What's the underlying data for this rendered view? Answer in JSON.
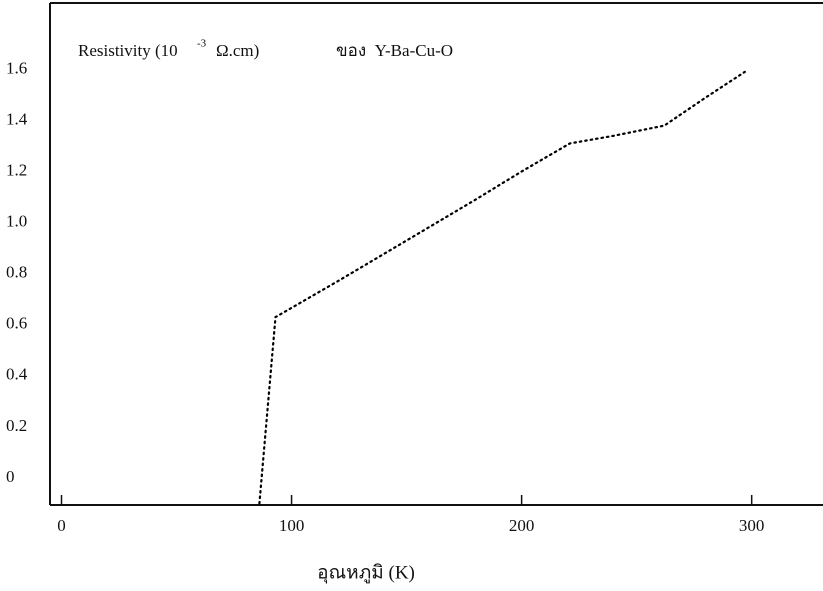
{
  "chart_data": {
    "type": "line",
    "annotation": {
      "text": "Resistivity (10",
      "superscript": "-3",
      "unit": "Ω.cm)",
      "suffix": "ของ  Y-Ba-Cu-O"
    },
    "x_label": "อุณหภูมิ (K)",
    "x": [
      86,
      93,
      120,
      150,
      180,
      200,
      221,
      240,
      262,
      280,
      297
    ],
    "series": [
      {
        "color": "#000000",
        "values": [
          -0.1,
          0.63,
          0.77,
          0.93,
          1.09,
          1.2,
          1.31,
          1.34,
          1.38,
          1.49,
          1.59
        ]
      }
    ],
    "xlim": [
      -5,
      331
    ],
    "ylim": [
      -0.106,
      1.86
    ],
    "xticks": [
      0,
      100,
      200,
      300
    ],
    "yticks": [
      0,
      0.2,
      0.4,
      0.6,
      0.8,
      {
        "value": 1,
        "label": "1.0"
      },
      1.2,
      1.4,
      1.6
    ],
    "grid": false
  }
}
